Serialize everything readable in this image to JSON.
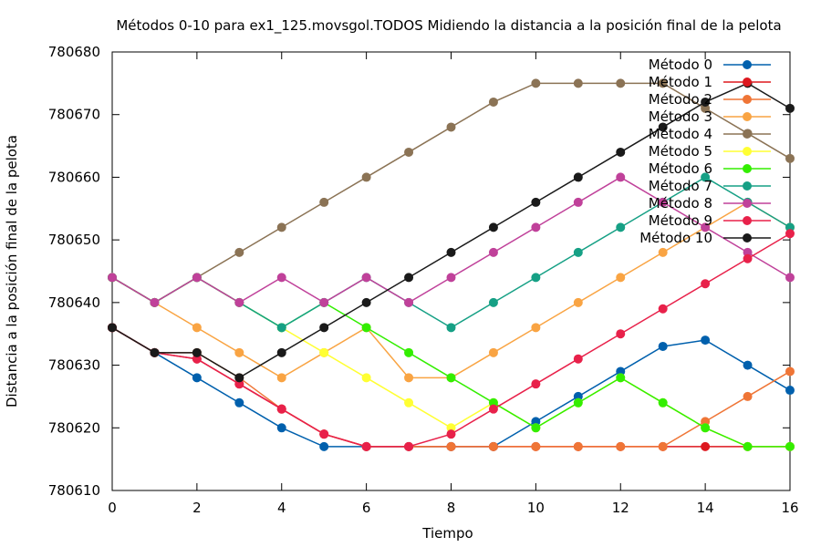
{
  "chart_data": {
    "type": "line",
    "title": "Métodos 0-10 para ex1_125.movsgol.TODOS Midiendo la distancia a la posición final de la pelota",
    "xlabel": "Tiempo",
    "ylabel": "Distancia a la posición final de la pelota",
    "xlim": [
      0,
      16
    ],
    "ylim": [
      780610,
      780680
    ],
    "xticks": [
      0,
      2,
      4,
      6,
      8,
      10,
      12,
      14,
      16
    ],
    "yticks": [
      780610,
      780620,
      780630,
      780640,
      780650,
      780660,
      780670,
      780680
    ],
    "grid": false,
    "legend_position": "top-right",
    "x": [
      0,
      1,
      2,
      3,
      4,
      5,
      6,
      7,
      8,
      9,
      10,
      11,
      12,
      13,
      14,
      15,
      16
    ],
    "series": [
      {
        "name": "Método 0",
        "color": "#0060ad",
        "values": [
          780636,
          780632,
          780628,
          780624,
          780620,
          780617,
          780617,
          780617,
          780617,
          780617,
          780621,
          780625,
          780629,
          780633,
          780634,
          780630,
          780626
        ]
      },
      {
        "name": "Método 1",
        "color": "#dd181f",
        "values": [
          780636,
          780632,
          780631,
          780627,
          780623,
          780619,
          780617,
          780617,
          780617,
          780617,
          780617,
          780617,
          780617,
          780617,
          780617,
          780617,
          780617
        ]
      },
      {
        "name": "Método 2",
        "color": "#ef7536",
        "values": [
          780636,
          780632,
          780632,
          780628,
          780623,
          780619,
          780617,
          780617,
          780617,
          780617,
          780617,
          780617,
          780617,
          780617,
          780621,
          780625,
          780629
        ]
      },
      {
        "name": "Método 3",
        "color": "#f9a443",
        "values": [
          780644,
          780640,
          780636,
          780632,
          780628,
          780632,
          780636,
          780628,
          780628,
          780632,
          780636,
          780640,
          780644,
          780648,
          780652,
          780656,
          780652
        ]
      },
      {
        "name": "Método 4",
        "color": "#8b7355",
        "values": [
          780644,
          780640,
          780644,
          780648,
          780652,
          780656,
          780660,
          780664,
          780668,
          780672,
          780675,
          780675,
          780675,
          780675,
          780671,
          780667,
          780663
        ]
      },
      {
        "name": "Método 5",
        "color": "#ffff33",
        "values": [
          780644,
          780640,
          780644,
          780640,
          780636,
          780632,
          780628,
          780624,
          780620,
          780624,
          780620,
          780624,
          780628,
          780624,
          780620,
          780617,
          780617
        ]
      },
      {
        "name": "Método 6",
        "color": "#33ee00",
        "values": [
          780644,
          780640,
          780644,
          780640,
          780636,
          780640,
          780636,
          780632,
          780628,
          780624,
          780620,
          780624,
          780628,
          780624,
          780620,
          780617,
          780617
        ]
      },
      {
        "name": "Método 7",
        "color": "#16a085",
        "values": [
          780644,
          780640,
          780644,
          780640,
          780636,
          780640,
          780644,
          780640,
          780636,
          780640,
          780644,
          780648,
          780652,
          780656,
          780660,
          780656,
          780652
        ]
      },
      {
        "name": "Método 8",
        "color": "#c0419a",
        "values": [
          780644,
          780640,
          780644,
          780640,
          780644,
          780640,
          780644,
          780640,
          780644,
          780648,
          780652,
          780656,
          780660,
          780656,
          780652,
          780648,
          780644
        ]
      },
      {
        "name": "Método 9",
        "color": "#e8214a",
        "values": [
          780636,
          780632,
          780631,
          780627,
          780623,
          780619,
          780617,
          780617,
          780619,
          780623,
          780627,
          780631,
          780635,
          780639,
          780643,
          780647,
          780651
        ]
      },
      {
        "name": "Método 10",
        "color": "#1a1a1a",
        "values": [
          780636,
          780632,
          780632,
          780628,
          780632,
          780636,
          780640,
          780644,
          780648,
          780652,
          780656,
          780660,
          780664,
          780668,
          780672,
          780675,
          780671
        ]
      }
    ]
  }
}
